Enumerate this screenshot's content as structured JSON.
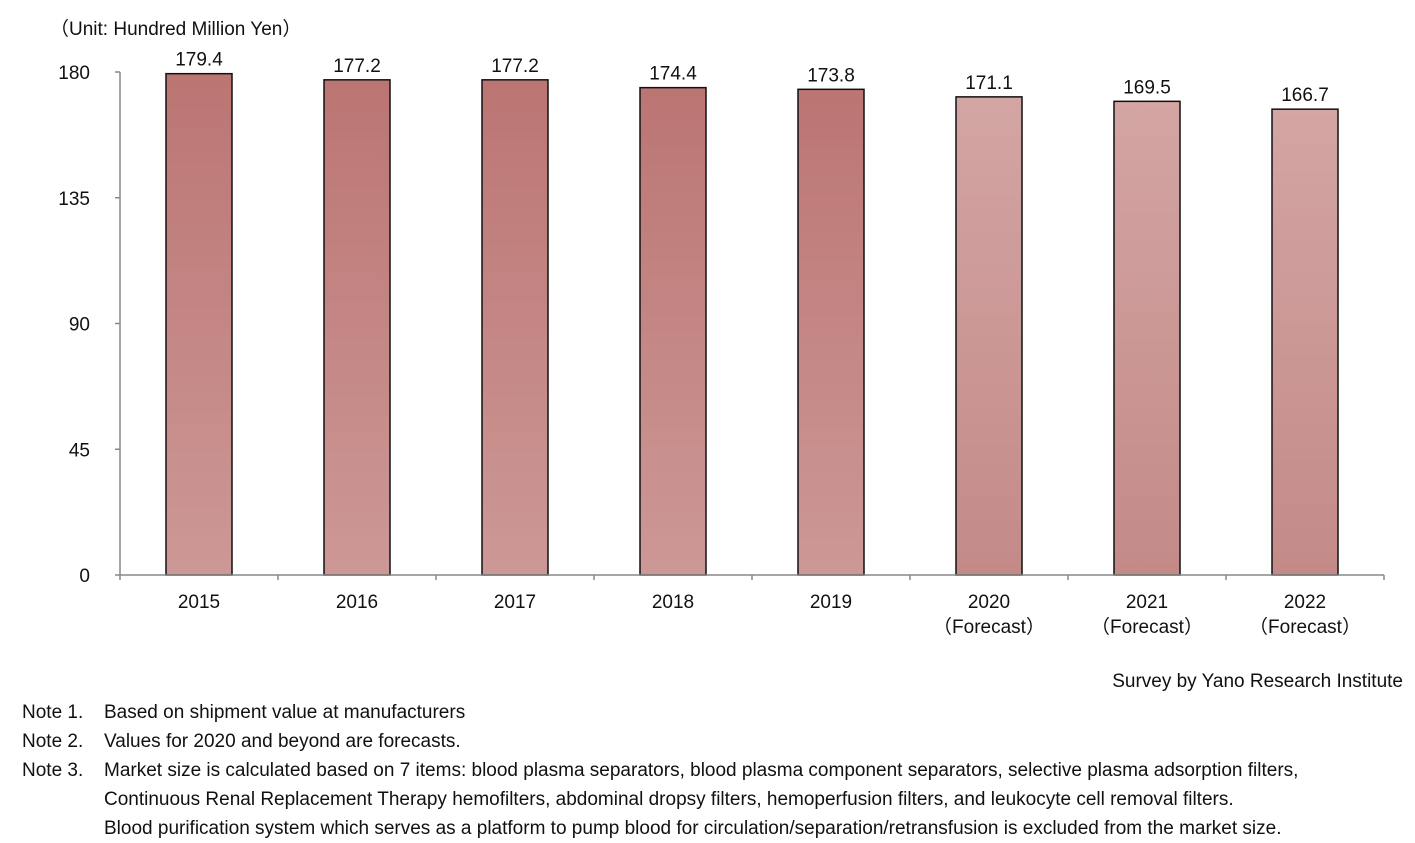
{
  "chart_data": {
    "type": "bar",
    "unit_label": "（Unit: Hundred Million Yen）",
    "categories": [
      [
        "2015"
      ],
      [
        "2016"
      ],
      [
        "2017"
      ],
      [
        "2018"
      ],
      [
        "2019"
      ],
      [
        "2020",
        "（Forecast）"
      ],
      [
        "2021",
        "（Forecast）"
      ],
      [
        "2022",
        "（Forecast）"
      ]
    ],
    "values": [
      179.4,
      177.2,
      177.2,
      174.4,
      173.8,
      171.1,
      169.5,
      166.7
    ],
    "value_labels": [
      "179.4",
      "177.2",
      "177.2",
      "174.4",
      "173.8",
      "171.1",
      "169.5",
      "166.7"
    ],
    "forecast": [
      false,
      false,
      false,
      false,
      false,
      true,
      true,
      true
    ],
    "ylim": [
      0,
      180
    ],
    "yticks": [
      0,
      45,
      90,
      135,
      180
    ],
    "grid": false,
    "colors": {
      "actual_top": "#bb7573",
      "actual_bottom": "#cc9896",
      "forecast_top": "#d3a5a3",
      "forecast_bottom": "#c38a88",
      "bar_stroke": "#111111",
      "axis": "#888888"
    }
  },
  "credit": "Survey by Yano Research Institute",
  "notes": [
    {
      "label": "Note 1.",
      "lines": [
        "Based on shipment value at manufacturers"
      ]
    },
    {
      "label": "Note 2.",
      "lines": [
        "Values for 2020 and beyond are forecasts."
      ]
    },
    {
      "label": "Note 3.",
      "lines": [
        "Market size is calculated based on 7 items: blood plasma separators, blood plasma component separators, selective plasma adsorption filters,",
        "Continuous Renal Replacement Therapy hemofilters, abdominal dropsy filters, hemoperfusion filters, and leukocyte cell removal filters.",
        "Blood purification system which serves as a platform to pump blood for circulation/separation/retransfusion is excluded from the market size."
      ]
    }
  ]
}
